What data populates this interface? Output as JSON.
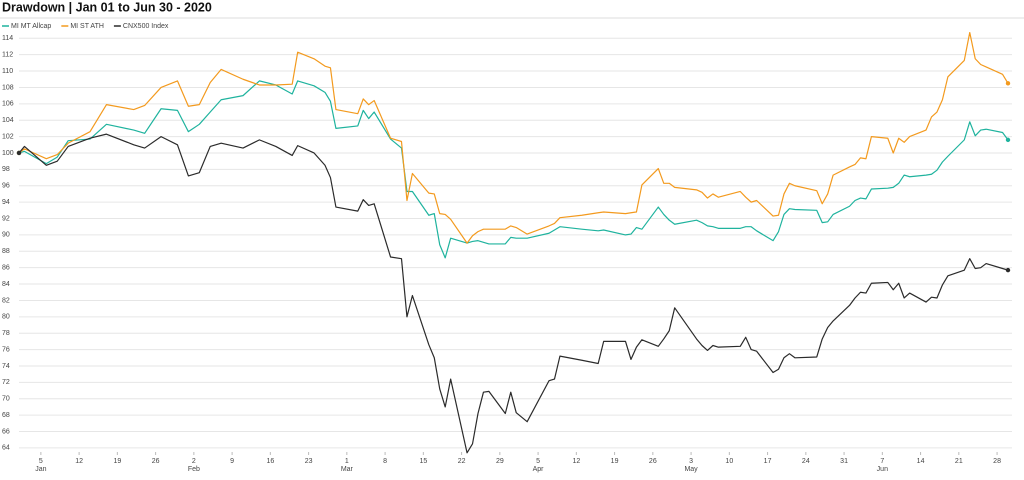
{
  "chart_data": {
    "type": "line",
    "title": "Drawdown | Jan 01 to Jun 30 - 2020",
    "x": [
      "01-01",
      "01-02",
      "01-06",
      "01-08",
      "01-10",
      "01-14",
      "01-17",
      "01-22",
      "01-24",
      "01-27",
      "01-30",
      "02-01",
      "02-03",
      "02-05",
      "02-07",
      "02-11",
      "02-14",
      "02-17",
      "02-20",
      "02-21",
      "02-24",
      "02-26",
      "02-27",
      "02-28",
      "03-03",
      "03-04",
      "03-05",
      "03-06",
      "03-09",
      "03-11",
      "03-12",
      "03-13",
      "03-16",
      "03-17",
      "03-18",
      "03-19",
      "03-20",
      "03-23",
      "03-24",
      "03-25",
      "03-26",
      "03-27",
      "03-30",
      "03-31",
      "04-01",
      "04-03",
      "04-07",
      "04-08",
      "04-09",
      "04-13",
      "04-16",
      "04-17",
      "04-21",
      "04-22",
      "04-23",
      "04-24",
      "04-27",
      "04-28",
      "04-29",
      "04-30",
      "05-04",
      "05-05",
      "05-06",
      "05-07",
      "05-08",
      "05-12",
      "05-13",
      "05-14",
      "05-15",
      "05-18",
      "05-19",
      "05-20",
      "05-21",
      "05-22",
      "05-26",
      "05-27",
      "05-28",
      "05-29",
      "06-01",
      "06-02",
      "06-03",
      "06-04",
      "06-05",
      "06-08",
      "06-09",
      "06-10",
      "06-11",
      "06-12",
      "06-15",
      "06-16",
      "06-17",
      "06-18",
      "06-19",
      "06-22",
      "06-23",
      "06-24",
      "06-25",
      "06-26",
      "06-29",
      "06-30"
    ],
    "series": [
      {
        "name": "MI MT Allcap",
        "color": "#1fb39e",
        "values": [
          100,
          100.2,
          98.7,
          99.5,
          101.5,
          101.7,
          103.5,
          102.8,
          102.4,
          105.4,
          105.2,
          102.6,
          103.5,
          105,
          106.5,
          107,
          108.8,
          108.3,
          107.2,
          108.8,
          108.2,
          107.4,
          106.3,
          103,
          103.3,
          105.2,
          104.2,
          105,
          101.7,
          100.6,
          95.3,
          95.3,
          92.4,
          92.6,
          88.8,
          87.2,
          89.6,
          89,
          89.2,
          89.3,
          89.1,
          88.9,
          88.9,
          89.7,
          89.6,
          89.6,
          90.2,
          90.6,
          91,
          90.7,
          90.5,
          90.6,
          90,
          90.1,
          90.9,
          90.7,
          93.4,
          92.5,
          91.8,
          91.3,
          91.8,
          91.5,
          91.1,
          91,
          90.8,
          90.8,
          91,
          91,
          90.5,
          89.3,
          90.4,
          92.5,
          93.2,
          93.1,
          93,
          91.5,
          91.6,
          92.5,
          93.5,
          94.2,
          94.5,
          94.4,
          95.6,
          95.7,
          95.8,
          96.3,
          97.3,
          97.1,
          97.3,
          97.4,
          97.9,
          98.9,
          99.6,
          101.6,
          103.8,
          102.1,
          102.8,
          102.9,
          102.5,
          101.6
        ]
      },
      {
        "name": "MI ST ATH",
        "color": "#f39a1e",
        "values": [
          100,
          100.5,
          99.3,
          99.8,
          101.2,
          102.6,
          105.9,
          105.3,
          105.8,
          108,
          108.8,
          105.7,
          105.9,
          108.6,
          110.2,
          109,
          108.3,
          108.3,
          108.4,
          112.3,
          111.5,
          110.6,
          110.4,
          105.3,
          104.8,
          106.6,
          105.9,
          106.4,
          101.8,
          101.4,
          94.2,
          97.5,
          95.1,
          95,
          92.6,
          92.5,
          91.9,
          89,
          89.9,
          90.4,
          90.7,
          90.7,
          90.7,
          91.1,
          90.9,
          90.1,
          91.1,
          91.4,
          92.1,
          92.4,
          92.7,
          92.8,
          92.6,
          92.7,
          92.8,
          96.1,
          98.1,
          96.3,
          96.3,
          95.8,
          95.5,
          95.2,
          94.5,
          95,
          94.6,
          95.3,
          94.6,
          94,
          94.2,
          92.3,
          92.4,
          95,
          96.3,
          96,
          95.4,
          93.8,
          95,
          97.3,
          98.3,
          98.6,
          99.4,
          99.3,
          102,
          101.8,
          100,
          101.8,
          101.3,
          102,
          102.8,
          104.4,
          105,
          106.5,
          109.3,
          111.3,
          114.7,
          111.5,
          110.8,
          110.5,
          109.6,
          108.5
        ]
      },
      {
        "name": "CNX500 Index",
        "color": "#2b2b2b",
        "values": [
          100,
          100.8,
          98.5,
          99,
          100.8,
          101.8,
          102.3,
          101,
          100.6,
          102,
          101,
          97.2,
          97.6,
          100.8,
          101.2,
          100.6,
          101.6,
          100.8,
          99.7,
          100.9,
          100,
          98.5,
          97,
          93.4,
          92.9,
          94.3,
          93.6,
          93.8,
          87.3,
          87.1,
          80,
          82.6,
          76.6,
          75,
          71.2,
          69,
          72.4,
          63.4,
          64.5,
          68.2,
          70.8,
          70.9,
          68.2,
          70.8,
          68.3,
          67.2,
          72.2,
          72.4,
          75.2,
          74.7,
          74.3,
          77,
          77,
          74.8,
          76.3,
          77.2,
          76.4,
          77.3,
          78.3,
          81.1,
          77.3,
          76.5,
          75.9,
          76.5,
          76.3,
          76.4,
          77.5,
          76,
          75.8,
          73.2,
          73.6,
          75,
          75.5,
          75,
          75.1,
          77.3,
          78.7,
          79.5,
          81.4,
          82.3,
          83,
          82.9,
          84.1,
          84.2,
          83.3,
          84.1,
          82.3,
          82.9,
          81.8,
          82.4,
          82.3,
          83.9,
          85,
          85.7,
          87.1,
          85.9,
          86,
          86.5,
          85.9,
          85.7
        ]
      }
    ],
    "xlim": [
      "01-01",
      "06-30"
    ],
    "xticks": [
      {
        "value": "01-05",
        "label": "5"
      },
      {
        "value": "01-12",
        "label": "12"
      },
      {
        "value": "01-19",
        "label": "19"
      },
      {
        "value": "01-26",
        "label": "26"
      },
      {
        "value": "02-02",
        "label": "2"
      },
      {
        "value": "02-09",
        "label": "9"
      },
      {
        "value": "02-16",
        "label": "16"
      },
      {
        "value": "02-23",
        "label": "23"
      },
      {
        "value": "03-01",
        "label": "1"
      },
      {
        "value": "03-08",
        "label": "8"
      },
      {
        "value": "03-15",
        "label": "15"
      },
      {
        "value": "03-22",
        "label": "22"
      },
      {
        "value": "03-29",
        "label": "29"
      },
      {
        "value": "04-05",
        "label": "5"
      },
      {
        "value": "04-12",
        "label": "12"
      },
      {
        "value": "04-19",
        "label": "19"
      },
      {
        "value": "04-26",
        "label": "26"
      },
      {
        "value": "05-03",
        "label": "3"
      },
      {
        "value": "05-10",
        "label": "10"
      },
      {
        "value": "05-17",
        "label": "17"
      },
      {
        "value": "05-24",
        "label": "24"
      },
      {
        "value": "05-31",
        "label": "31"
      },
      {
        "value": "06-07",
        "label": "7"
      },
      {
        "value": "06-14",
        "label": "14"
      },
      {
        "value": "06-21",
        "label": "21"
      },
      {
        "value": "06-28",
        "label": "28"
      }
    ],
    "month_labels": [
      {
        "value": "01-05",
        "label": "Jan"
      },
      {
        "value": "02-02",
        "label": "Feb"
      },
      {
        "value": "03-01",
        "label": "Mar"
      },
      {
        "value": "04-05",
        "label": "Apr"
      },
      {
        "value": "05-03",
        "label": "May"
      },
      {
        "value": "06-07",
        "label": "Jun"
      }
    ],
    "ylim": [
      63.5,
      115.5
    ],
    "yticks": [
      64,
      66,
      68,
      70,
      72,
      74,
      76,
      78,
      80,
      82,
      84,
      86,
      88,
      90,
      92,
      94,
      96,
      98,
      100,
      102,
      104,
      106,
      108,
      110,
      112,
      114
    ],
    "grid": true,
    "legend": "top-left"
  }
}
